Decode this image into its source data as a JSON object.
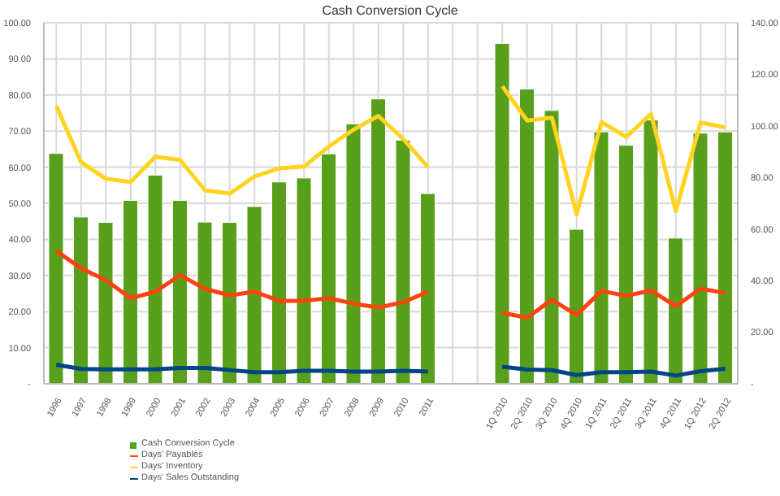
{
  "chart_data": {
    "type": "bar",
    "title": "Cash Conversion Cycle",
    "categories": [
      "1996",
      "1997",
      "1998",
      "1999",
      "2000",
      "2001",
      "2002",
      "2003",
      "2004",
      "2005",
      "2006",
      "2007",
      "2008",
      "2009",
      "2010",
      "2011",
      null,
      null,
      "1Q 2010",
      "2Q 2010",
      "3Q 2010",
      "4Q 2010",
      "1Q 2011",
      "2Q 2011",
      "3Q 2011",
      "4Q 2011",
      "1Q 2012",
      "2Q 2012"
    ],
    "series": [
      {
        "name": "Cash Conversion Cycle",
        "color": "#58a01c",
        "values": [
          63.8,
          46.2,
          44.7,
          50.8,
          57.8,
          50.8,
          44.8,
          44.7,
          49.1,
          55.9,
          57,
          63.7,
          72,
          78.9,
          67.5,
          52.7,
          null,
          null,
          null,
          null,
          null,
          null,
          null,
          null,
          null,
          null,
          null,
          null
        ]
      },
      {
        "name": "Days' Payables",
        "type": "line",
        "color": "#ff420e",
        "values": [
          36.8,
          32,
          28.7,
          23.7,
          25.5,
          30.1,
          26.3,
          24.5,
          25.5,
          23,
          23,
          23.7,
          22.2,
          21.1,
          22.6,
          25.5,
          null,
          null,
          null,
          null,
          null,
          null,
          null,
          null,
          null,
          null,
          null,
          null
        ]
      },
      {
        "name": "Days' Inventory",
        "type": "line",
        "color": "#ffd320",
        "values": [
          77,
          61.4,
          56.8,
          55.9,
          62.9,
          62,
          53.6,
          52.7,
          57.4,
          59.7,
          60.2,
          65.7,
          70.4,
          74.2,
          67.8,
          60,
          null,
          null,
          null,
          null,
          null,
          null,
          null,
          null,
          null,
          null,
          null,
          null
        ]
      },
      {
        "name": "Days' Sales Outstanding",
        "type": "line",
        "color": "#004586",
        "values": [
          5.3,
          4.1,
          4,
          4,
          4,
          4.4,
          4.4,
          3.8,
          3.2,
          3.2,
          3.6,
          3.6,
          3.4,
          3.4,
          3.6,
          3.4,
          null,
          null,
          null,
          null,
          null,
          null,
          null,
          null,
          null,
          null,
          null,
          null
        ]
      },
      {
        "axis": "y2",
        "color": "#58a01c",
        "values": [
          null,
          null,
          null,
          null,
          null,
          null,
          null,
          null,
          null,
          null,
          null,
          null,
          null,
          null,
          null,
          null,
          null,
          null,
          132,
          114.3,
          106,
          59.9,
          97.7,
          92.5,
          102.3,
          56.5,
          97.2,
          97.7
        ]
      },
      {
        "type": "line",
        "axis": "y2",
        "color": "#ff420e",
        "values": [
          null,
          null,
          null,
          null,
          null,
          null,
          null,
          null,
          null,
          null,
          null,
          null,
          null,
          null,
          null,
          null,
          null,
          null,
          27.5,
          25.6,
          32.6,
          26.7,
          36,
          34.1,
          36.2,
          30.1,
          36.9,
          35.2
        ]
      },
      {
        "type": "line",
        "axis": "y2",
        "color": "#ffd320",
        "values": [
          null,
          null,
          null,
          null,
          null,
          null,
          null,
          null,
          null,
          null,
          null,
          null,
          null,
          null,
          null,
          null,
          null,
          null,
          115.4,
          102.1,
          103.2,
          65.7,
          101.5,
          95.7,
          104.7,
          67,
          101.3,
          99.4
        ]
      },
      {
        "type": "line",
        "axis": "y2",
        "color": "#004586",
        "values": [
          null,
          null,
          null,
          null,
          null,
          null,
          null,
          null,
          null,
          null,
          null,
          null,
          null,
          null,
          null,
          null,
          null,
          null,
          6.6,
          5.5,
          5.3,
          3.4,
          4.5,
          4.5,
          4.7,
          3.2,
          4.9,
          5.8
        ]
      }
    ],
    "ylim": [
      0,
      100
    ],
    "yticks": [
      {
        "value": 0,
        "label": "-"
      },
      {
        "value": 10,
        "label": "10.00"
      },
      {
        "value": 20,
        "label": "20.00"
      },
      {
        "value": 30,
        "label": "30.00"
      },
      {
        "value": 40,
        "label": "40.00"
      },
      {
        "value": 50,
        "label": "50.00"
      },
      {
        "value": 60,
        "label": "60.00"
      },
      {
        "value": 70,
        "label": "70.00"
      },
      {
        "value": 80,
        "label": "80.00"
      },
      {
        "value": 90,
        "label": "90.00"
      },
      {
        "value": 100,
        "label": "100.00"
      }
    ],
    "y2lim": [
      0,
      140
    ],
    "y2ticks": [
      {
        "value": 0,
        "label": "-"
      },
      {
        "value": 20,
        "label": "20.00"
      },
      {
        "value": 40,
        "label": "40.00"
      },
      {
        "value": 60,
        "label": "60.00"
      },
      {
        "value": 80,
        "label": "80.00"
      },
      {
        "value": 100,
        "label": "100.00"
      },
      {
        "value": 120,
        "label": "120.00"
      },
      {
        "value": 140,
        "label": "140.00"
      }
    ],
    "grid": true,
    "legend": "bottom left",
    "marker": "none",
    "line_style": "solid"
  }
}
